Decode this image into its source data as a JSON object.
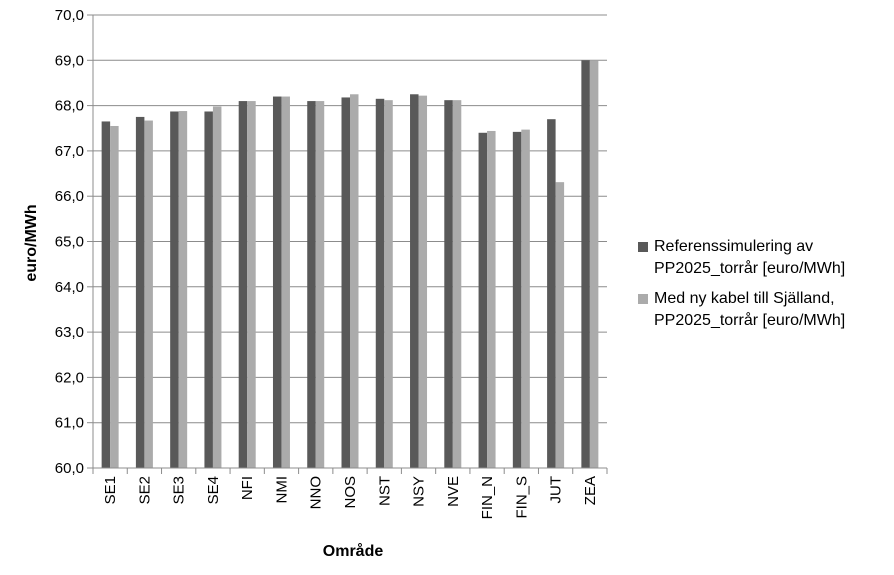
{
  "chart_data": {
    "type": "bar",
    "title": "",
    "xlabel": "Område",
    "ylabel": "euro/MWh",
    "ylim": [
      60,
      70
    ],
    "yticks": [
      "60,0",
      "61,0",
      "62,0",
      "63,0",
      "64,0",
      "65,0",
      "66,0",
      "67,0",
      "68,0",
      "69,0",
      "70,0"
    ],
    "grid": true,
    "legend_position": "right",
    "categories": [
      "SE1",
      "SE2",
      "SE3",
      "SE4",
      "NFI",
      "NMI",
      "NNO",
      "NOS",
      "NST",
      "NSY",
      "NVE",
      "FIN_N",
      "FIN_S",
      "JUT",
      "ZEA"
    ],
    "series": [
      {
        "name": "Referenssimulering av\nPP2025_torrår [euro/MWh]",
        "color": "#595959",
        "values": [
          67.65,
          67.75,
          67.87,
          67.87,
          68.1,
          68.2,
          68.1,
          68.18,
          68.15,
          68.25,
          68.12,
          67.4,
          67.42,
          67.7,
          69.0
        ]
      },
      {
        "name": "Med ny kabel till Själland,\nPP2025_torrår [euro/MWh]",
        "color": "#ababab",
        "values": [
          67.55,
          67.67,
          67.88,
          67.98,
          68.1,
          68.2,
          68.1,
          68.25,
          68.12,
          68.22,
          68.12,
          67.44,
          67.47,
          66.31,
          69.0
        ]
      }
    ]
  }
}
